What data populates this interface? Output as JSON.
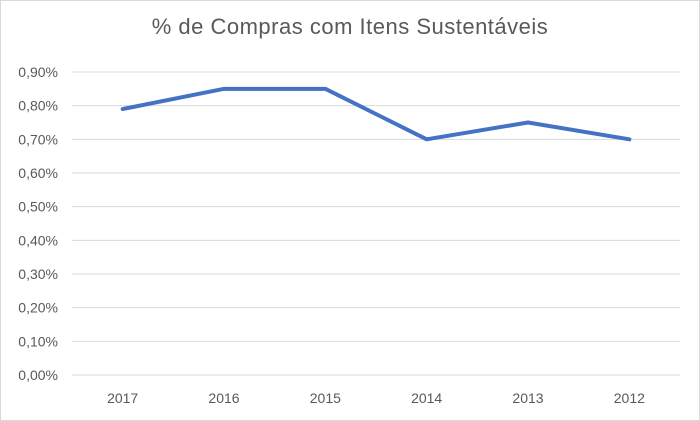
{
  "chart_data": {
    "type": "line",
    "title": "% de Compras com Itens Sustentáveis",
    "categories": [
      "2017",
      "2016",
      "2015",
      "2014",
      "2013",
      "2012"
    ],
    "series": [
      {
        "values": [
          0.79,
          0.85,
          0.85,
          0.7,
          0.75,
          0.7
        ]
      }
    ],
    "ylim": [
      0,
      0.9
    ],
    "yticks": [
      0,
      0.1,
      0.2,
      0.3,
      0.4,
      0.5,
      0.6,
      0.7,
      0.8,
      0.9
    ],
    "ytick_labels": [
      "0,00%",
      "0,10%",
      "0,20%",
      "0,30%",
      "0,40%",
      "0,50%",
      "0,60%",
      "0,70%",
      "0,80%",
      "0,90%"
    ],
    "grid": true,
    "legend": "none",
    "colors": {
      "line": "#4472c4",
      "grid": "#d9d9d9",
      "text": "#595959"
    }
  }
}
